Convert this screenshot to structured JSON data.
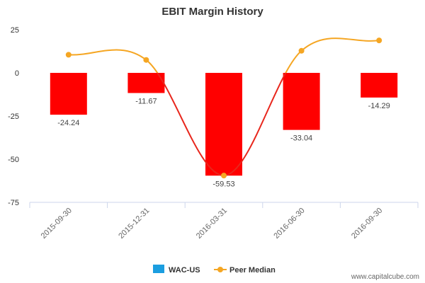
{
  "chart_data": {
    "type": "bar",
    "title": "EBIT Margin History",
    "categories": [
      "2015-09-30",
      "2015-12-31",
      "2016-03-31",
      "2016-06-30",
      "2016-09-30"
    ],
    "series": [
      {
        "name": "WAC-US",
        "kind": "bar",
        "values": [
          -24.24,
          -11.67,
          -59.53,
          -33.04,
          -14.29
        ],
        "data_labels": [
          "-24.24",
          "-11.67",
          "-59.53",
          "-33.04",
          "-14.29"
        ]
      },
      {
        "name": "Peer Median",
        "kind": "line",
        "values": [
          10.5,
          7.5,
          -59.5,
          12.8,
          18.8
        ]
      }
    ],
    "yticks": [
      25,
      0,
      -25,
      -50,
      -75
    ],
    "ylim": [
      -75,
      25
    ],
    "grid": false,
    "legend": "bottom-center",
    "colors": {
      "bar_fill": "#ff0000",
      "legend_swatch_wac": "#1b9ee0",
      "peer_line_above_zero": "#f5a623",
      "peer_line_below_zero": "#e8261c",
      "peer_marker": "#f5a623"
    }
  },
  "watermark": "www.capitalcube.com"
}
